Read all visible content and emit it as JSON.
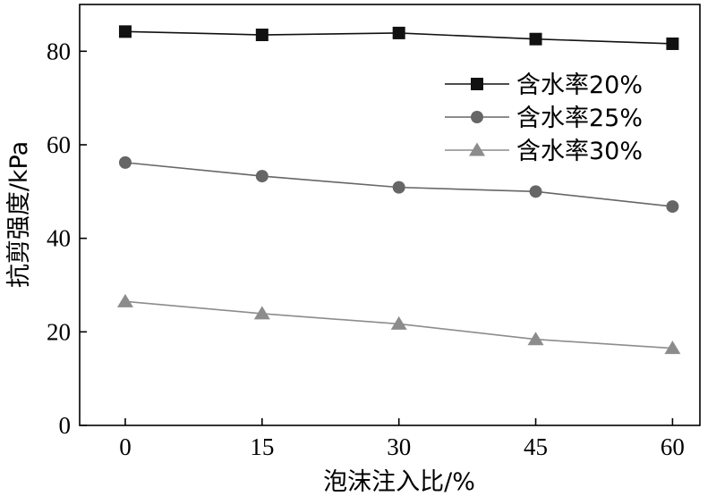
{
  "chart_data": {
    "type": "line",
    "title": "",
    "xlabel": "泡沫注入比/%",
    "ylabel": "抗剪强度/kPa",
    "x": [
      0,
      15,
      30,
      45,
      60
    ],
    "x_ticks": [
      "0",
      "15",
      "30",
      "45",
      "60"
    ],
    "y_ticks": [
      "0",
      "20",
      "40",
      "60",
      "80"
    ],
    "xlim": [
      -5,
      63
    ],
    "ylim": [
      0,
      90
    ],
    "grid": false,
    "legend_position": "top-right",
    "series": [
      {
        "name": "含水率20%",
        "marker": "square",
        "color": "#111111",
        "values": [
          84.2,
          83.5,
          83.9,
          82.6,
          81.6
        ]
      },
      {
        "name": "含水率25%",
        "marker": "circle",
        "color": "#666666",
        "values": [
          56.2,
          53.3,
          50.9,
          50.0,
          46.8
        ]
      },
      {
        "name": "含水率30%",
        "marker": "triangle",
        "color": "#8c8c8c",
        "values": [
          26.5,
          23.9,
          21.7,
          18.4,
          16.5
        ]
      }
    ]
  }
}
